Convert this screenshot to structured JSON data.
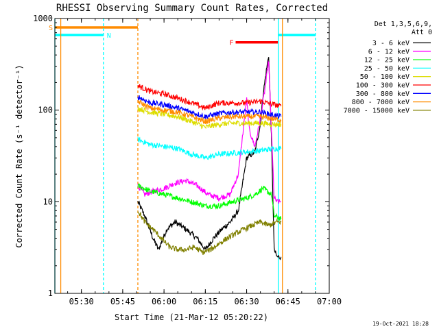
{
  "chart_data": {
    "type": "line",
    "title": "RHESSI Observing Summary Count Rates, Corrected",
    "xlabel": "Start Time (21-Mar-12 05:20:22)",
    "ylabel": "Corrected Count Rate (s⁻¹ detector⁻¹)",
    "x_ticks": [
      "05:30",
      "05:45",
      "06:00",
      "06:15",
      "06:30",
      "06:45",
      "07:00"
    ],
    "y_ticks": [
      "1",
      "10",
      "100",
      "1000"
    ],
    "xlim": [
      "05:20:22",
      "07:00:00"
    ],
    "ylim": [
      1,
      1000
    ],
    "y_scale": "log",
    "grid": false,
    "legend_position": "right",
    "legend_header": [
      "Det 1,3,5,6,9,",
      "Att 0"
    ],
    "footer": "19-Oct-2021 18:28",
    "data_window": [
      "05:50:30",
      "06:42:30"
    ],
    "series": [
      {
        "name": "3 - 6 keV",
        "color": "#000000",
        "x": [
          "05:50:30",
          "05:53",
          "05:56",
          "05:58",
          "06:01",
          "06:04",
          "06:08",
          "06:12",
          "06:15",
          "06:18",
          "06:21",
          "06:24",
          "06:27",
          "06:30",
          "06:33",
          "06:35",
          "06:36",
          "06:37",
          "06:38",
          "06:39",
          "06:40",
          "06:41",
          "06:42:30"
        ],
        "y": [
          10,
          7,
          4,
          3,
          5,
          6,
          5,
          4,
          3,
          4,
          5,
          6,
          8,
          30,
          35,
          70,
          150,
          250,
          400,
          50,
          3,
          2.5,
          2.5
        ]
      },
      {
        "name": "6 - 12 keV",
        "color": "#ff00ff",
        "x": [
          "05:50:30",
          "05:53",
          "05:56",
          "06:00",
          "06:04",
          "06:08",
          "06:12",
          "06:16",
          "06:20",
          "06:24",
          "06:27",
          "06:29",
          "06:30",
          "06:31",
          "06:33",
          "06:35",
          "06:37",
          "06:38",
          "06:39",
          "06:40",
          "06:41",
          "06:42:30"
        ],
        "y": [
          15,
          12,
          13,
          14,
          16,
          17,
          15,
          12,
          11,
          12,
          20,
          70,
          130,
          60,
          40,
          80,
          200,
          350,
          60,
          11,
          10,
          10
        ]
      },
      {
        "name": "12 - 25 keV",
        "color": "#00ff00",
        "x": [
          "05:50:30",
          "05:55",
          "06:00",
          "06:05",
          "06:10",
          "06:15",
          "06:20",
          "06:25",
          "06:30",
          "06:33",
          "06:36",
          "06:39",
          "06:40",
          "06:42:30"
        ],
        "y": [
          15,
          13,
          12,
          11,
          10,
          9,
          9,
          10,
          11,
          12,
          14,
          12,
          7,
          6.5
        ]
      },
      {
        "name": "25 - 50 keV",
        "color": "#00ffff",
        "x": [
          "05:50:30",
          "05:55",
          "06:00",
          "06:05",
          "06:10",
          "06:15",
          "06:20",
          "06:25",
          "06:30",
          "06:35",
          "06:40",
          "06:42:30"
        ],
        "y": [
          48,
          42,
          40,
          38,
          33,
          30,
          33,
          34,
          35,
          36,
          38,
          38
        ]
      },
      {
        "name": "50 - 100 keV",
        "color": "#dddd00",
        "x": [
          "05:50:30",
          "05:55",
          "06:00",
          "06:05",
          "06:10",
          "06:15",
          "06:20",
          "06:25",
          "06:30",
          "06:35",
          "06:40",
          "06:42:30"
        ],
        "y": [
          105,
          95,
          90,
          85,
          75,
          65,
          70,
          72,
          72,
          72,
          70,
          70
        ]
      },
      {
        "name": "100 - 300 keV",
        "color": "#ff0000",
        "x": [
          "05:50:30",
          "05:55",
          "06:00",
          "06:05",
          "06:10",
          "06:15",
          "06:20",
          "06:25",
          "06:30",
          "06:35",
          "06:40",
          "06:42:30"
        ],
        "y": [
          185,
          160,
          150,
          135,
          120,
          105,
          120,
          120,
          120,
          125,
          115,
          110
        ]
      },
      {
        "name": "300 - 800 keV",
        "color": "#0000ff",
        "x": [
          "05:50:30",
          "05:55",
          "06:00",
          "06:05",
          "06:10",
          "06:15",
          "06:20",
          "06:25",
          "06:30",
          "06:35",
          "06:40",
          "06:42:30"
        ],
        "y": [
          140,
          120,
          115,
          105,
          95,
          85,
          92,
          95,
          95,
          95,
          88,
          85
        ]
      },
      {
        "name": "800 - 7000 keV",
        "color": "#ff8c00",
        "x": [
          "05:50:30",
          "05:55",
          "06:00",
          "06:05",
          "06:10",
          "06:15",
          "06:20",
          "06:25",
          "06:30",
          "06:35",
          "06:40",
          "06:42:30"
        ],
        "y": [
          125,
          105,
          100,
          95,
          85,
          75,
          82,
          85,
          85,
          85,
          80,
          78
        ]
      },
      {
        "name": "7000 - 15000 keV",
        "color": "#808000",
        "x": [
          "05:50:30",
          "05:53",
          "05:56",
          "05:59",
          "06:02",
          "06:05",
          "06:08",
          "06:11",
          "06:14",
          "06:17",
          "06:20",
          "06:23",
          "06:26",
          "06:29",
          "06:32",
          "06:35",
          "06:38",
          "06:41",
          "06:42:30"
        ],
        "y": [
          8,
          6,
          5,
          4,
          3.2,
          3,
          3,
          3.2,
          2.8,
          3,
          3.5,
          4,
          4.5,
          5,
          5.5,
          6,
          5.5,
          6,
          6
        ]
      }
    ],
    "annotations": {
      "flags": [
        {
          "label": "S",
          "color": "#ff8c00",
          "x_start": "05:20:22",
          "x_end": "05:50:30",
          "y": 800
        },
        {
          "label": "N",
          "color": "#00ffff",
          "x_start": "05:20:22",
          "x_end": "05:38:00",
          "y": 660
        },
        {
          "label": "F",
          "color": "#ff0000",
          "x_start": "06:26:00",
          "x_end": "06:41:30",
          "y": 550
        },
        {
          "label": "",
          "color": "#00ffff",
          "x_start": "06:41:30",
          "x_end": "06:55:00",
          "y": 660
        }
      ],
      "vlines": [
        {
          "x": "05:20:22",
          "color": "#00ffff",
          "style": "solid"
        },
        {
          "x": "05:22:30",
          "color": "#ff8c00",
          "style": "solid"
        },
        {
          "x": "05:38:00",
          "color": "#00ffff",
          "style": "dashed"
        },
        {
          "x": "05:50:30",
          "color": "#ff8c00",
          "style": "dashed"
        },
        {
          "x": "06:41:30",
          "color": "#00ffff",
          "style": "solid"
        },
        {
          "x": "06:43:00",
          "color": "#ff8c00",
          "style": "solid"
        },
        {
          "x": "06:55:00",
          "color": "#00ffff",
          "style": "dashed"
        }
      ]
    }
  }
}
